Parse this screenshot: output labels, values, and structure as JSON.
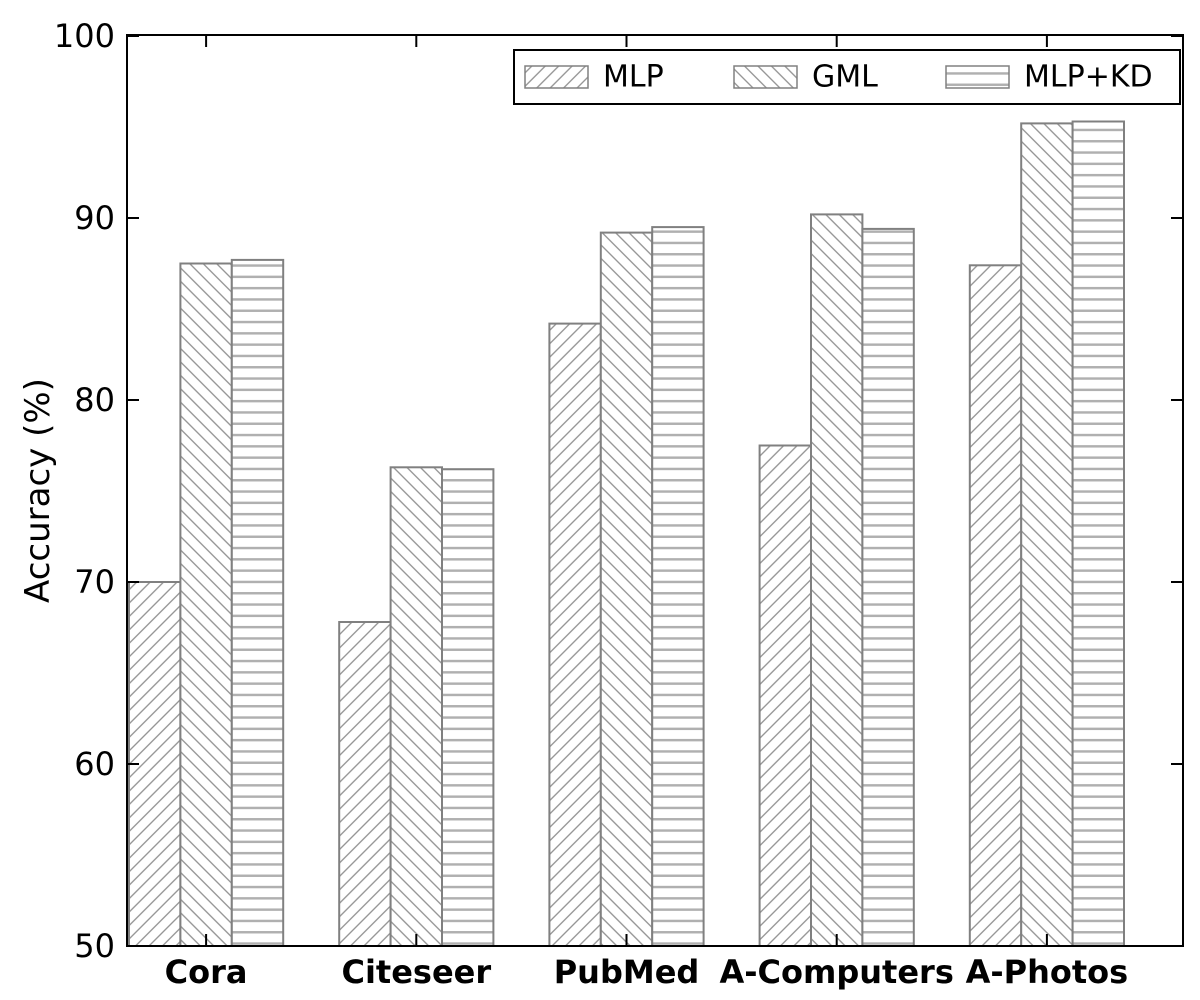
{
  "chart_data": {
    "type": "bar",
    "title": "",
    "xlabel": "",
    "ylabel": "Accuracy (%)",
    "ylim": [
      50,
      100
    ],
    "yticks": [
      50,
      60,
      70,
      80,
      90,
      100
    ],
    "categories": [
      "Cora",
      "Citeseer",
      "PubMed",
      "A-Computers",
      "A-Photos"
    ],
    "series": [
      {
        "name": "MLP",
        "hatch": "forward-diagonal",
        "values": [
          70.0,
          67.8,
          84.2,
          77.5,
          87.4
        ]
      },
      {
        "name": "GML",
        "hatch": "backward-diagonal",
        "values": [
          87.5,
          76.3,
          89.2,
          90.2,
          95.2
        ]
      },
      {
        "name": "MLP+KD",
        "hatch": "horizontal",
        "values": [
          87.7,
          76.2,
          89.5,
          89.4,
          95.3
        ]
      }
    ],
    "legend_position": "upper-right",
    "grid": false,
    "colors": {
      "background": "#ffffff",
      "bar_fill": "#ffffff",
      "bar_edge": "#808080",
      "hatch_diagonal": "#8c8c8c",
      "hatch_horizontal": "#b0b0b0",
      "axis": "#000000",
      "text": "#000000"
    }
  }
}
